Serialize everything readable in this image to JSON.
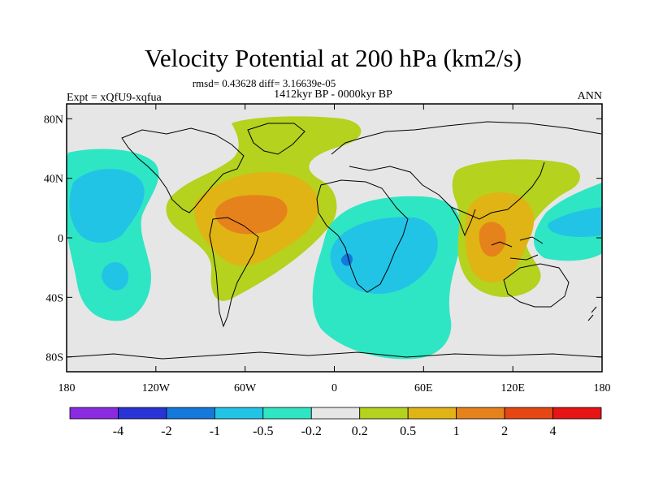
{
  "title": "Velocity Potential at 200 hPa (km2/s)",
  "stats": "rmsd= 0.43628 diff= 3.16639e-05",
  "period": "1412kyr BP - 0000kyr BP",
  "left_label": "Expt = xQfU9-xqfua",
  "right_label": "ANN",
  "axes": {
    "lat_ticks": [
      "80N",
      "40N",
      "0",
      "40S",
      "80S"
    ],
    "lon_ticks": [
      "180",
      "120W",
      "60W",
      "0",
      "60E",
      "120E",
      "180"
    ]
  },
  "colorbar": {
    "colors": [
      "#8a2be2",
      "#2a33d6",
      "#1478dc",
      "#22c4e6",
      "#2ee6c4",
      "#e6e6e6",
      "#b4d21e",
      "#e0b414",
      "#e6821c",
      "#e64614",
      "#e61414"
    ],
    "labels": [
      "-4",
      "-2",
      "-1",
      "-0.5",
      "-0.2",
      "0.2",
      "0.5",
      "1",
      "2",
      "4"
    ]
  },
  "map_colors": {
    "background": "#e6e6e6",
    "cyan_light": "#2ee6c4",
    "cyan": "#22c4e6",
    "blue": "#1478dc",
    "green": "#b4d21e",
    "orange_light": "#e0b414",
    "orange": "#e6821c"
  }
}
